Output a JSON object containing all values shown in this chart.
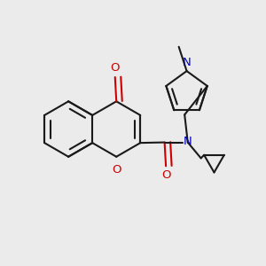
{
  "bg_color": "#ebebeb",
  "bond_color": "#1a1a1a",
  "oxygen_color": "#cc0000",
  "nitrogen_color": "#0000bb",
  "lw": 1.5,
  "fs": 9.5,
  "xlim": [
    0,
    10
  ],
  "ylim": [
    0,
    10
  ]
}
